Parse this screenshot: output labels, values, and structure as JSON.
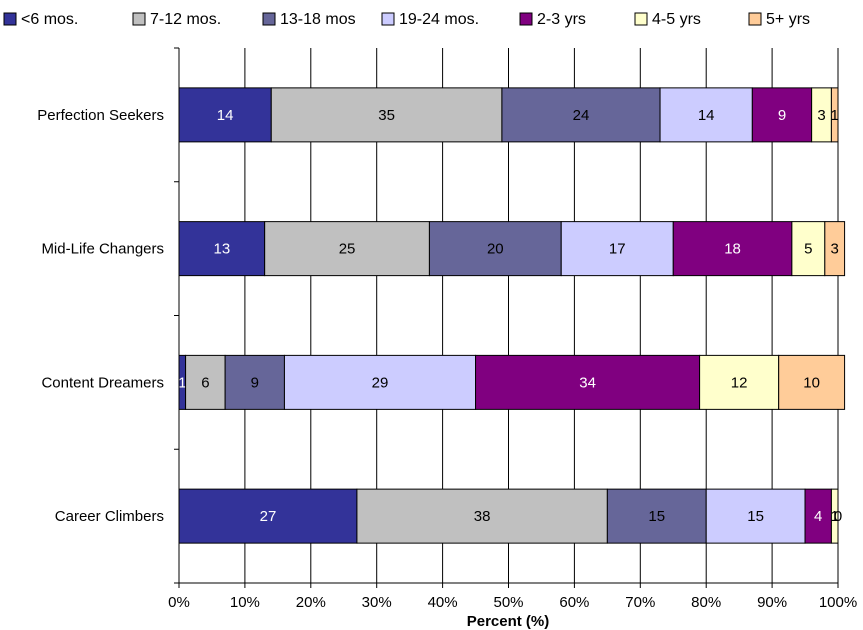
{
  "chart_data": {
    "type": "bar",
    "orientation": "horizontal",
    "stacked": true,
    "title": "",
    "xlabel": "Percent (%)",
    "ylabel": "",
    "xlim": [
      0,
      100
    ],
    "xticks": [
      "0%",
      "10%",
      "20%",
      "30%",
      "40%",
      "50%",
      "60%",
      "70%",
      "80%",
      "90%",
      "100%"
    ],
    "grid": true,
    "legend_position": "top",
    "categories": [
      "Perfection Seekers",
      "Mid-Life Changers",
      "Content Dreamers",
      "Career Climbers"
    ],
    "series": [
      {
        "name": "<6 mos.",
        "color": "#333399",
        "label_color": "#ffffff",
        "values": [
          14,
          13,
          1,
          27
        ]
      },
      {
        "name": "7-12 mos.",
        "color": "#c0c0c0",
        "label_color": "#000000",
        "values": [
          35,
          25,
          6,
          38
        ]
      },
      {
        "name": "13-18 mos",
        "color": "#666699",
        "label_color": "#000000",
        "values": [
          24,
          20,
          9,
          15
        ]
      },
      {
        "name": "19-24 mos.",
        "color": "#ccccff",
        "label_color": "#000000",
        "values": [
          14,
          17,
          29,
          15
        ]
      },
      {
        "name": "2-3 yrs",
        "color": "#800080",
        "label_color": "#ffffff",
        "values": [
          9,
          18,
          34,
          4
        ]
      },
      {
        "name": "4-5 yrs",
        "color": "#ffffcc",
        "label_color": "#000000",
        "values": [
          3,
          5,
          12,
          1
        ]
      },
      {
        "name": "5+ yrs",
        "color": "#ffcc99",
        "label_color": "#000000",
        "values": [
          1,
          3,
          10,
          0
        ]
      }
    ]
  }
}
